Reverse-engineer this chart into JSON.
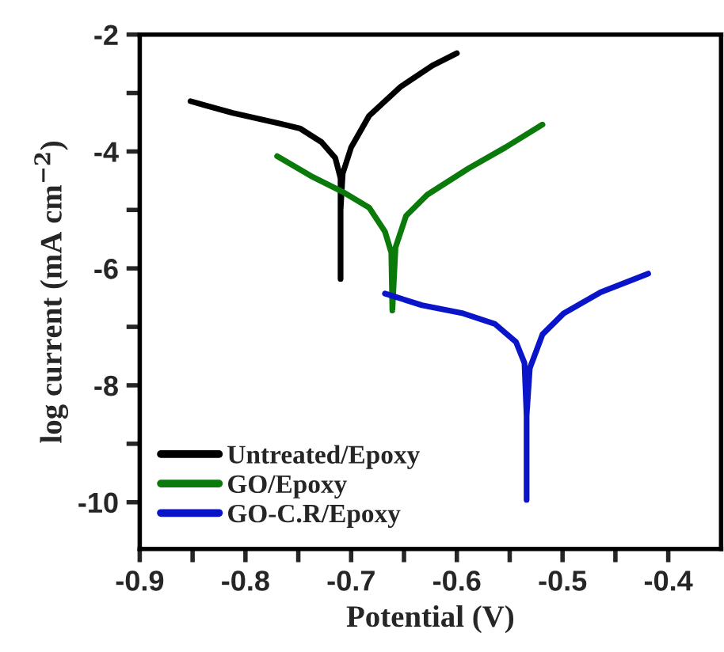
{
  "chart_data": {
    "type": "line",
    "xlabel": "Potential (V)",
    "ylabel": "log current (mA cm$^{−2}$)",
    "xlim": [
      -0.9,
      -0.35
    ],
    "ylim": [
      -10.8,
      -2
    ],
    "xticks": [
      -0.9,
      {
        "value": -0.85,
        "label": null
      },
      -0.8,
      {
        "value": -0.75,
        "label": null
      },
      -0.7,
      {
        "value": -0.65,
        "label": null
      },
      -0.6,
      {
        "value": -0.55,
        "label": null
      },
      -0.5,
      {
        "value": -0.45,
        "label": null
      },
      -0.4
    ],
    "yticks": [
      -2,
      {
        "value": -3,
        "label": null
      },
      -4,
      {
        "value": -5,
        "label": null
      },
      -6,
      {
        "value": -7,
        "label": null
      },
      -8,
      {
        "value": -9,
        "label": null
      },
      -10
    ],
    "grid": false,
    "legend": "bottom left",
    "marker": "none",
    "line_style": "solid",
    "series": [
      {
        "name": "Untreated/Epoxy",
        "color": "#000000",
        "x": [
          -0.852,
          -0.812,
          -0.768,
          -0.748,
          -0.728,
          -0.715,
          -0.71,
          -0.71,
          -0.71,
          -0.71,
          -0.708,
          -0.7,
          -0.683,
          -0.653,
          -0.623,
          -0.6
        ],
        "values": [
          -3.14,
          -3.34,
          -3.52,
          -3.61,
          -3.84,
          -4.11,
          -4.46,
          -5.0,
          -6.18,
          -5.0,
          -4.38,
          -3.93,
          -3.39,
          -2.89,
          -2.53,
          -2.32
        ]
      },
      {
        "name": "GO/Epoxy",
        "color": "#0a7a0a",
        "x": [
          -0.77,
          -0.738,
          -0.708,
          -0.683,
          -0.668,
          -0.662,
          -0.661,
          -0.658,
          -0.648,
          -0.628,
          -0.589,
          -0.554,
          -0.519
        ],
        "values": [
          -4.08,
          -4.42,
          -4.69,
          -4.96,
          -5.37,
          -5.73,
          -6.72,
          -5.64,
          -5.1,
          -4.74,
          -4.29,
          -3.93,
          -3.54
        ]
      },
      {
        "name": "GO-C.R/Epoxy",
        "color": "#0a14c8",
        "x": [
          -0.668,
          -0.633,
          -0.594,
          -0.564,
          -0.544,
          -0.536,
          -0.534,
          -0.534,
          -0.534,
          -0.531,
          -0.519,
          -0.499,
          -0.464,
          -0.419
        ],
        "values": [
          -6.43,
          -6.63,
          -6.77,
          -6.95,
          -7.26,
          -7.62,
          -8.52,
          -9.96,
          -8.52,
          -7.71,
          -7.13,
          -6.77,
          -6.41,
          -6.09
        ]
      }
    ]
  }
}
